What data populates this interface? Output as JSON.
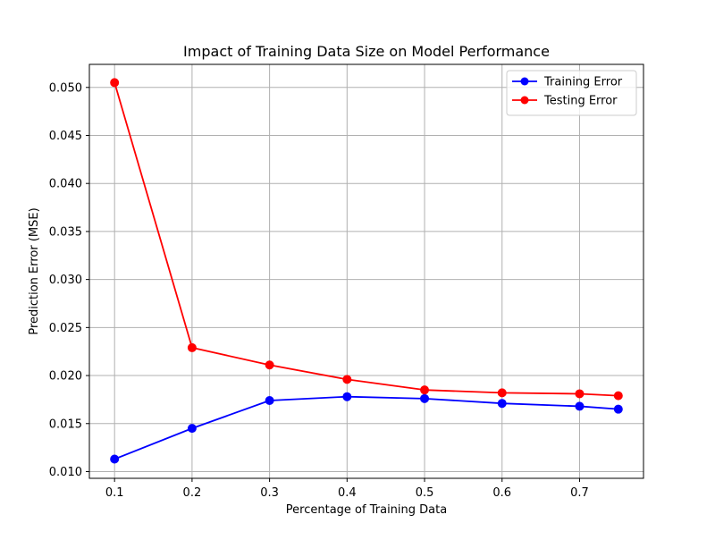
{
  "chart_data": {
    "type": "line",
    "title": "Impact of Training Data Size on Model Performance",
    "xlabel": "Percentage of Training Data",
    "ylabel": "Prediction Error (MSE)",
    "x": [
      0.1,
      0.2,
      0.3,
      0.4,
      0.5,
      0.6,
      0.7,
      0.75
    ],
    "xlim": [
      0.0675,
      0.7825
    ],
    "ylim": [
      0.0093,
      0.0524
    ],
    "x_ticks": [
      0.1,
      0.2,
      0.3,
      0.4,
      0.5,
      0.6,
      0.7
    ],
    "x_tick_labels": [
      "0.1",
      "0.2",
      "0.3",
      "0.4",
      "0.5",
      "0.6",
      "0.7"
    ],
    "y_ticks": [
      0.01,
      0.015,
      0.02,
      0.025,
      0.03,
      0.035,
      0.04,
      0.045,
      0.05
    ],
    "y_tick_labels": [
      "0.010",
      "0.015",
      "0.020",
      "0.025",
      "0.030",
      "0.035",
      "0.040",
      "0.045",
      "0.050"
    ],
    "grid": true,
    "legend": "top-right",
    "series": [
      {
        "name": "Training Error",
        "color": "#0000ff",
        "marker": "circle",
        "values": [
          0.0113,
          0.0145,
          0.0174,
          0.0178,
          0.0176,
          0.0171,
          0.0168,
          0.0165
        ]
      },
      {
        "name": "Testing Error",
        "color": "#ff0000",
        "marker": "circle",
        "values": [
          0.0505,
          0.0229,
          0.0211,
          0.0196,
          0.0185,
          0.0182,
          0.0181,
          0.0179
        ]
      }
    ]
  }
}
